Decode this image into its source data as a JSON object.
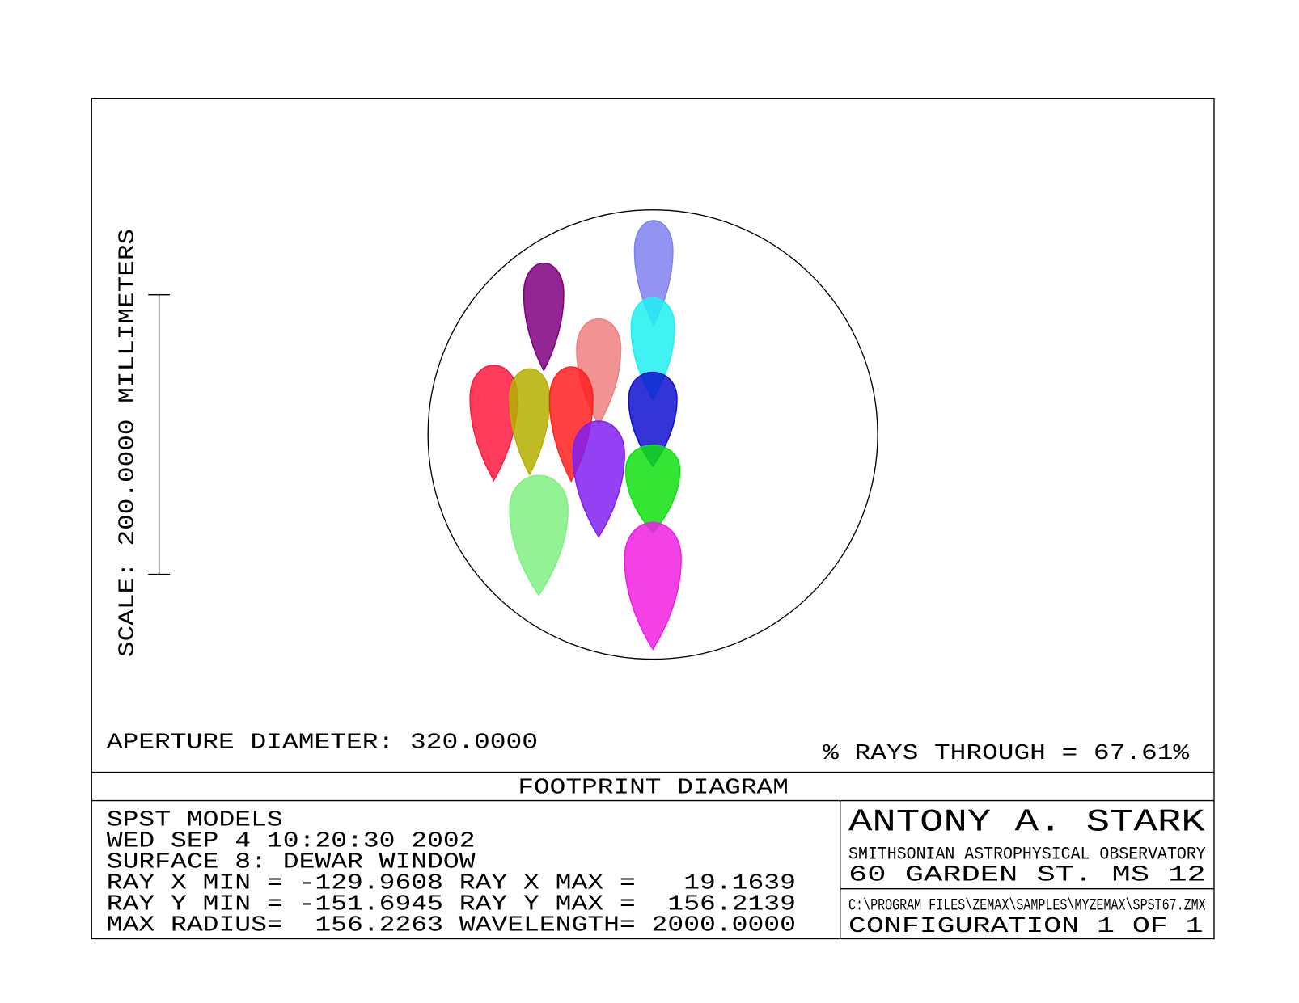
{
  "plot": {
    "scale_label": "SCALE: 200.0000 MILLIMETERS",
    "aperture": "APERTURE DIAMETER: 320.0000",
    "rays_through": "% RAYS THROUGH = 67.61%"
  },
  "title": "FOOTPRINT DIAGRAM",
  "info": {
    "lines": [
      "SPST MODELS",
      "WED SEP 4 10:20:30 2002",
      "SURFACE 8: DEWAR WINDOW",
      "RAY X MIN = -129.9608 RAY X MAX =   19.1639",
      "RAY Y MIN = -151.6945 RAY Y MAX =  156.2139",
      "MAX RADIUS=  156.2263 WAVELENGTH= 2000.0000"
    ]
  },
  "author": {
    "name": "ANTONY A. STARK",
    "organization": "SMITHSONIAN ASTROPHYSICAL OBSERVATORY",
    "address": "60 GARDEN ST. MS 12"
  },
  "file": {
    "path": "C:\\PROGRAM FILES\\ZEMAX\\SAMPLES\\MYZEMAX\\SPST67.ZMX",
    "configuration": "CONFIGURATION 1 OF 1"
  }
}
